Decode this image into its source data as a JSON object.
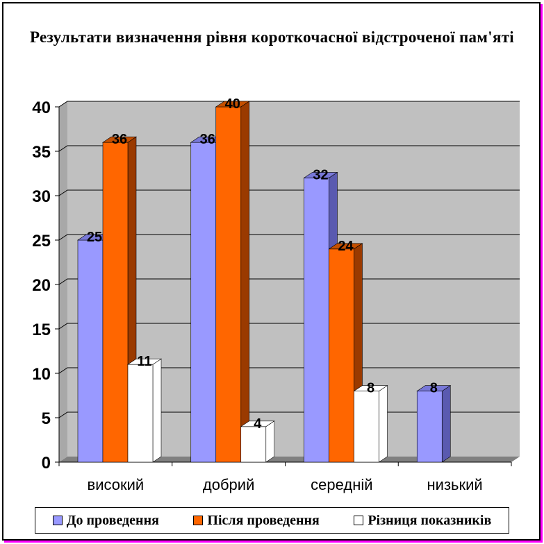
{
  "chart_data": {
    "type": "bar",
    "title": "Результати визначення рівня короткочасної відстроченої пам'яті",
    "categories": [
      "високий",
      "добрий",
      "середній",
      "низький"
    ],
    "series": [
      {
        "name": "До проведення",
        "values": [
          25,
          36,
          32,
          8
        ],
        "color": "#9999ff"
      },
      {
        "name": "Після проведення",
        "values": [
          36,
          40,
          24,
          null
        ],
        "color": "#ff6600"
      },
      {
        "name": "Різниця показників",
        "values": [
          11,
          4,
          8,
          null
        ],
        "color": "#ffffff"
      }
    ],
    "ylim": [
      0,
      40
    ],
    "yticks": [
      0,
      5,
      10,
      15,
      20,
      25,
      30,
      35,
      40
    ],
    "grid": true,
    "legend": "bottom"
  }
}
